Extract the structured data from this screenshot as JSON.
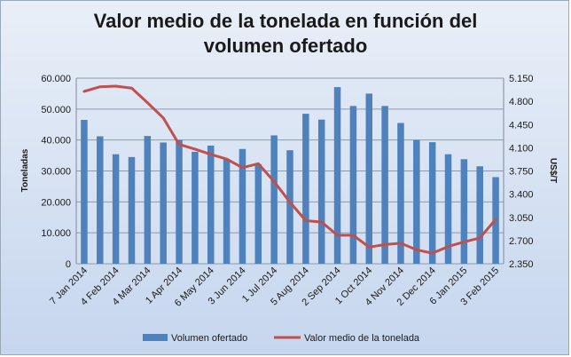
{
  "chart_data": {
    "type": "bar",
    "title_lines": [
      "Valor medio de la tonelada en función del",
      "volumen ofertado"
    ],
    "ylabel": "Toneladas",
    "y2label": "US$/T",
    "ylim": [
      0,
      60000
    ],
    "y2lim": [
      2350,
      5150
    ],
    "yticks": [
      "0",
      "10.000",
      "20.000",
      "30.000",
      "40.000",
      "50.000",
      "60.000"
    ],
    "y2ticks": [
      "2.350",
      "2.700",
      "3.050",
      "3.400",
      "3.750",
      "4.100",
      "4.450",
      "4.800",
      "5.150"
    ],
    "grid": "horizontal",
    "legend_position": "bottom",
    "categories": [
      "7 Jan 2014",
      "",
      "4 Feb 2014",
      "",
      "4 Mar 2014",
      "",
      "1 Apr 2014",
      "",
      "6 May 2014",
      "",
      "3 Jun 2014",
      "",
      "1 Jul 2014",
      "",
      "5 Aug 2014",
      "",
      "2 Sep 2014",
      "",
      "1 Oct 2014",
      "",
      "4 Nov 2014",
      "",
      "2 Dec 2014",
      "",
      "6 Jan 2015",
      "",
      "3 Feb 2015"
    ],
    "series": [
      {
        "name": "Volumen ofertado",
        "type": "bar",
        "axis": "left",
        "color": "#4f81bd",
        "values": [
          46500,
          41200,
          35400,
          34500,
          41300,
          39200,
          40000,
          36200,
          38200,
          33700,
          37100,
          32200,
          41500,
          36700,
          48500,
          46600,
          57100,
          51000,
          55000,
          51000,
          45500,
          40000,
          39300,
          35400,
          33800,
          31500,
          28000
        ]
      },
      {
        "name": "Valor medio de la tonelada",
        "type": "line",
        "axis": "right",
        "color": "#c0504d",
        "values": [
          4950,
          5020,
          5030,
          5000,
          4780,
          4550,
          4150,
          4080,
          4000,
          3930,
          3800,
          3860,
          3590,
          3280,
          3000,
          2980,
          2780,
          2780,
          2600,
          2640,
          2660,
          2560,
          2510,
          2610,
          2680,
          2740,
          3020
        ]
      }
    ]
  }
}
